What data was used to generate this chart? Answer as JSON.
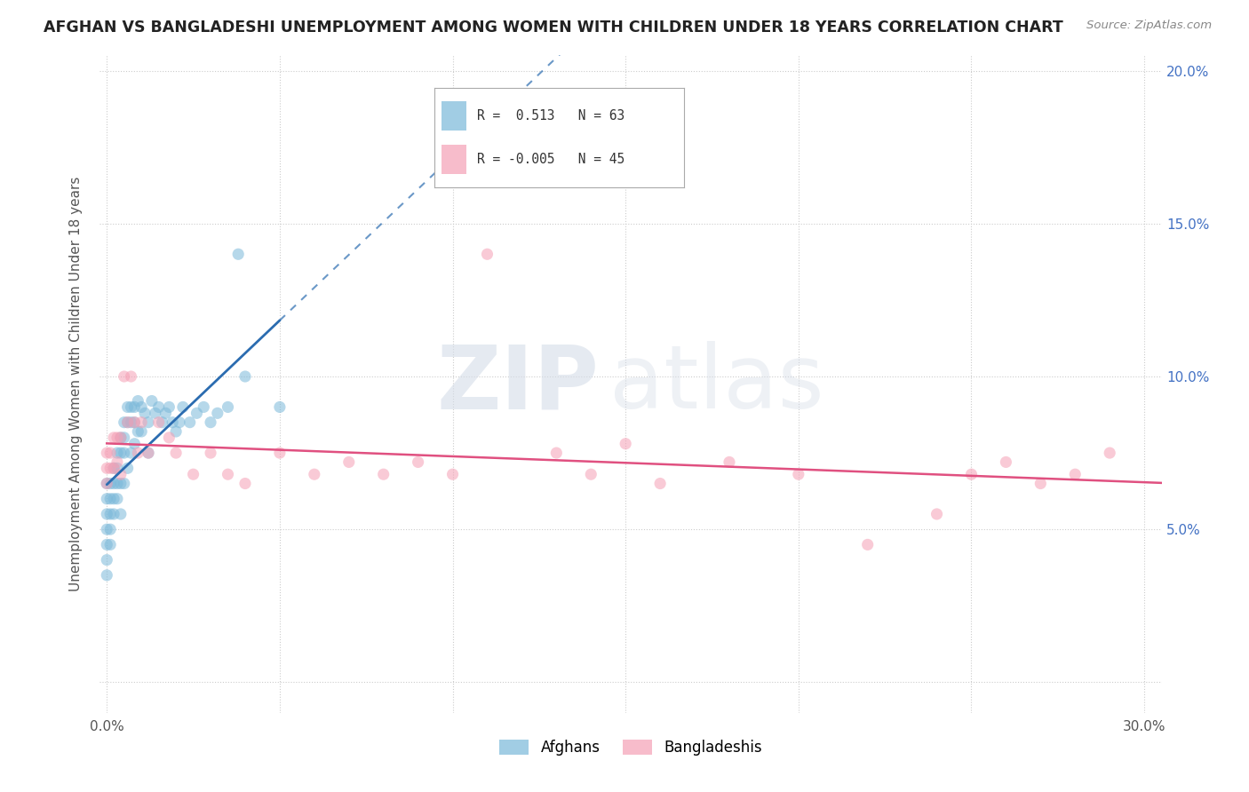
{
  "title": "AFGHAN VS BANGLADESHI UNEMPLOYMENT AMONG WOMEN WITH CHILDREN UNDER 18 YEARS CORRELATION CHART",
  "source": "Source: ZipAtlas.com",
  "ylabel": "Unemployment Among Women with Children Under 18 years",
  "watermark_zip": "ZIP",
  "watermark_atlas": "atlas",
  "legend_afghan": "Afghans",
  "legend_bangladeshi": "Bangladeshis",
  "afghan_R": 0.513,
  "afghan_N": 63,
  "bangladeshi_R": -0.005,
  "bangladeshi_N": 45,
  "xlim": [
    -0.002,
    0.305
  ],
  "ylim": [
    -0.01,
    0.205
  ],
  "xticks": [
    0.0,
    0.05,
    0.1,
    0.15,
    0.2,
    0.25,
    0.3
  ],
  "yticks": [
    0.0,
    0.05,
    0.1,
    0.15,
    0.2
  ],
  "afghan_color": "#7ab8d9",
  "bangladeshi_color": "#f5a0b5",
  "afghan_line_color": "#2b6cb0",
  "bangladeshi_line_color": "#e05080",
  "background_color": "#ffffff",
  "grid_color": "#cccccc",
  "afghan_x": [
    0.0,
    0.0,
    0.0,
    0.0,
    0.0,
    0.0,
    0.0,
    0.001,
    0.001,
    0.001,
    0.001,
    0.001,
    0.002,
    0.002,
    0.002,
    0.002,
    0.003,
    0.003,
    0.003,
    0.003,
    0.004,
    0.004,
    0.004,
    0.004,
    0.005,
    0.005,
    0.005,
    0.005,
    0.006,
    0.006,
    0.006,
    0.007,
    0.007,
    0.007,
    0.008,
    0.008,
    0.008,
    0.009,
    0.009,
    0.01,
    0.01,
    0.011,
    0.012,
    0.012,
    0.013,
    0.014,
    0.015,
    0.016,
    0.017,
    0.018,
    0.019,
    0.02,
    0.021,
    0.022,
    0.024,
    0.026,
    0.028,
    0.03,
    0.032,
    0.035,
    0.038,
    0.04,
    0.05
  ],
  "afghan_y": [
    0.065,
    0.06,
    0.055,
    0.05,
    0.045,
    0.04,
    0.035,
    0.065,
    0.06,
    0.055,
    0.05,
    0.045,
    0.07,
    0.065,
    0.06,
    0.055,
    0.075,
    0.07,
    0.065,
    0.06,
    0.08,
    0.075,
    0.065,
    0.055,
    0.085,
    0.08,
    0.075,
    0.065,
    0.09,
    0.085,
    0.07,
    0.09,
    0.085,
    0.075,
    0.09,
    0.085,
    0.078,
    0.092,
    0.082,
    0.09,
    0.082,
    0.088,
    0.085,
    0.075,
    0.092,
    0.088,
    0.09,
    0.085,
    0.088,
    0.09,
    0.085,
    0.082,
    0.085,
    0.09,
    0.085,
    0.088,
    0.09,
    0.085,
    0.088,
    0.09,
    0.14,
    0.1,
    0.09
  ],
  "bangladeshi_x": [
    0.0,
    0.0,
    0.0,
    0.001,
    0.001,
    0.002,
    0.002,
    0.003,
    0.003,
    0.004,
    0.004,
    0.005,
    0.006,
    0.007,
    0.008,
    0.009,
    0.01,
    0.012,
    0.015,
    0.018,
    0.02,
    0.025,
    0.03,
    0.035,
    0.04,
    0.05,
    0.06,
    0.07,
    0.08,
    0.09,
    0.1,
    0.11,
    0.13,
    0.14,
    0.15,
    0.16,
    0.18,
    0.2,
    0.22,
    0.24,
    0.25,
    0.26,
    0.27,
    0.28,
    0.29
  ],
  "bangladeshi_y": [
    0.075,
    0.07,
    0.065,
    0.075,
    0.07,
    0.08,
    0.07,
    0.08,
    0.072,
    0.08,
    0.068,
    0.1,
    0.085,
    0.1,
    0.085,
    0.075,
    0.085,
    0.075,
    0.085,
    0.08,
    0.075,
    0.068,
    0.075,
    0.068,
    0.065,
    0.075,
    0.068,
    0.072,
    0.068,
    0.072,
    0.068,
    0.14,
    0.075,
    0.068,
    0.078,
    0.065,
    0.072,
    0.068,
    0.045,
    0.055,
    0.068,
    0.072,
    0.065,
    0.068,
    0.075
  ]
}
